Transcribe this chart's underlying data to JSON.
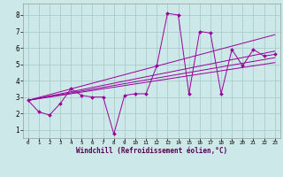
{
  "xlabel": "Windchill (Refroidissement éolien,°C)",
  "bg_color": "#cce8e8",
  "grid_color": "#aacccc",
  "line_color": "#990099",
  "xlim": [
    -0.5,
    23.5
  ],
  "ylim": [
    0.5,
    8.7
  ],
  "xticks": [
    0,
    1,
    2,
    3,
    4,
    5,
    6,
    7,
    8,
    9,
    10,
    11,
    12,
    13,
    14,
    15,
    16,
    17,
    18,
    19,
    20,
    21,
    22,
    23
  ],
  "yticks": [
    1,
    2,
    3,
    4,
    5,
    6,
    7,
    8
  ],
  "line_main": {
    "x": [
      0,
      1,
      2,
      3,
      4,
      5,
      6,
      7,
      8,
      9,
      10,
      11,
      12,
      13,
      14,
      15,
      16,
      17,
      18,
      19,
      20,
      21,
      22,
      23
    ],
    "y": [
      2.8,
      2.1,
      1.9,
      2.6,
      3.5,
      3.1,
      3.0,
      3.0,
      0.75,
      3.1,
      3.2,
      3.2,
      4.9,
      8.1,
      8.0,
      3.2,
      7.0,
      6.9,
      3.2,
      5.9,
      4.9,
      5.9,
      5.5,
      5.6
    ]
  },
  "trend_lines": [
    {
      "x": [
        0,
        23
      ],
      "y": [
        2.8,
        6.8
      ]
    },
    {
      "x": [
        0,
        23
      ],
      "y": [
        2.8,
        5.8
      ]
    },
    {
      "x": [
        0,
        23
      ],
      "y": [
        2.8,
        5.4
      ]
    },
    {
      "x": [
        0,
        23
      ],
      "y": [
        2.8,
        5.1
      ]
    }
  ]
}
